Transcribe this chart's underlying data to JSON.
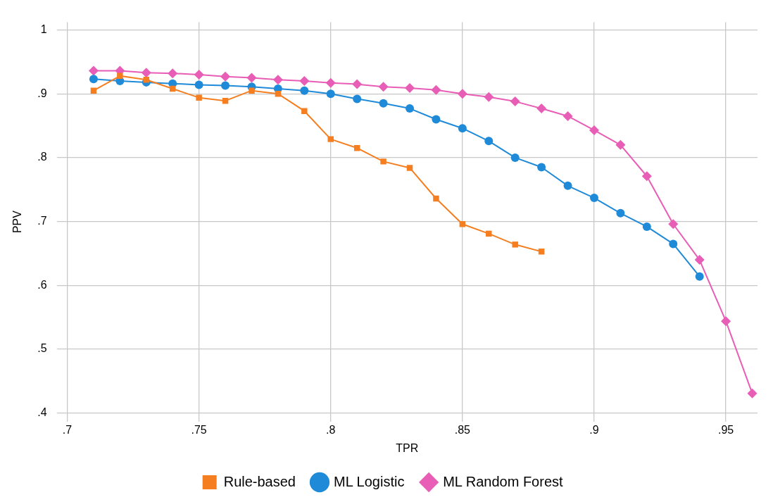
{
  "chart_data": {
    "type": "line",
    "xlabel": "TPR",
    "ylabel": "PPV",
    "xlim": [
      0.696,
      0.962
    ],
    "ylim": [
      0.387,
      1.012
    ],
    "xticks": [
      {
        "value": 0.7,
        "label": ".7"
      },
      {
        "value": 0.75,
        "label": ".75"
      },
      {
        "value": 0.8,
        "label": ".8"
      },
      {
        "value": 0.85,
        "label": ".85"
      },
      {
        "value": 0.9,
        "label": ".9"
      },
      {
        "value": 0.95,
        "label": ".95"
      }
    ],
    "yticks": [
      {
        "value": 0.4,
        "label": ".4"
      },
      {
        "value": 0.5,
        "label": ".5"
      },
      {
        "value": 0.6,
        "label": ".6"
      },
      {
        "value": 0.7,
        "label": ".7"
      },
      {
        "value": 0.8,
        "label": ".8"
      },
      {
        "value": 0.9,
        "label": ".9"
      },
      1
    ],
    "grid": true,
    "legend": "bottom",
    "line_style": "solid",
    "series": [
      {
        "name": "Rule-based",
        "color": "#f57f20",
        "marker": "square",
        "x": [
          0.71,
          0.72,
          0.73,
          0.74,
          0.75,
          0.76,
          0.77,
          0.78,
          0.79,
          0.8,
          0.81,
          0.82,
          0.83,
          0.84,
          0.85,
          0.86,
          0.87,
          0.88
        ],
        "values": [
          0.905,
          0.928,
          0.922,
          0.908,
          0.894,
          0.889,
          0.905,
          0.9,
          0.873,
          0.829,
          0.815,
          0.794,
          0.784,
          0.736,
          0.696,
          0.681,
          0.664,
          0.653
        ]
      },
      {
        "name": "ML Logistic",
        "color": "#1f8ad8",
        "marker": "circle",
        "x": [
          0.71,
          0.72,
          0.73,
          0.74,
          0.75,
          0.76,
          0.77,
          0.78,
          0.79,
          0.8,
          0.81,
          0.82,
          0.83,
          0.84,
          0.85,
          0.86,
          0.87,
          0.88,
          0.89,
          0.9,
          0.91,
          0.92,
          0.93,
          0.94
        ],
        "values": [
          0.923,
          0.92,
          0.918,
          0.916,
          0.914,
          0.913,
          0.911,
          0.908,
          0.905,
          0.9,
          0.892,
          0.885,
          0.877,
          0.86,
          0.846,
          0.826,
          0.8,
          0.785,
          0.756,
          0.737,
          0.713,
          0.692,
          0.665,
          0.614
        ]
      },
      {
        "name": "ML Random Forest",
        "color": "#e85db5",
        "marker": "diamond",
        "x": [
          0.71,
          0.72,
          0.73,
          0.74,
          0.75,
          0.76,
          0.77,
          0.78,
          0.79,
          0.8,
          0.81,
          0.82,
          0.83,
          0.84,
          0.85,
          0.86,
          0.87,
          0.88,
          0.89,
          0.9,
          0.91,
          0.92,
          0.93,
          0.94,
          0.95,
          0.96
        ],
        "values": [
          0.936,
          0.936,
          0.933,
          0.932,
          0.93,
          0.927,
          0.925,
          0.922,
          0.92,
          0.917,
          0.915,
          0.911,
          0.909,
          0.906,
          0.9,
          0.895,
          0.888,
          0.877,
          0.865,
          0.843,
          0.82,
          0.771,
          0.696,
          0.64,
          0.544,
          0.431
        ]
      }
    ]
  }
}
